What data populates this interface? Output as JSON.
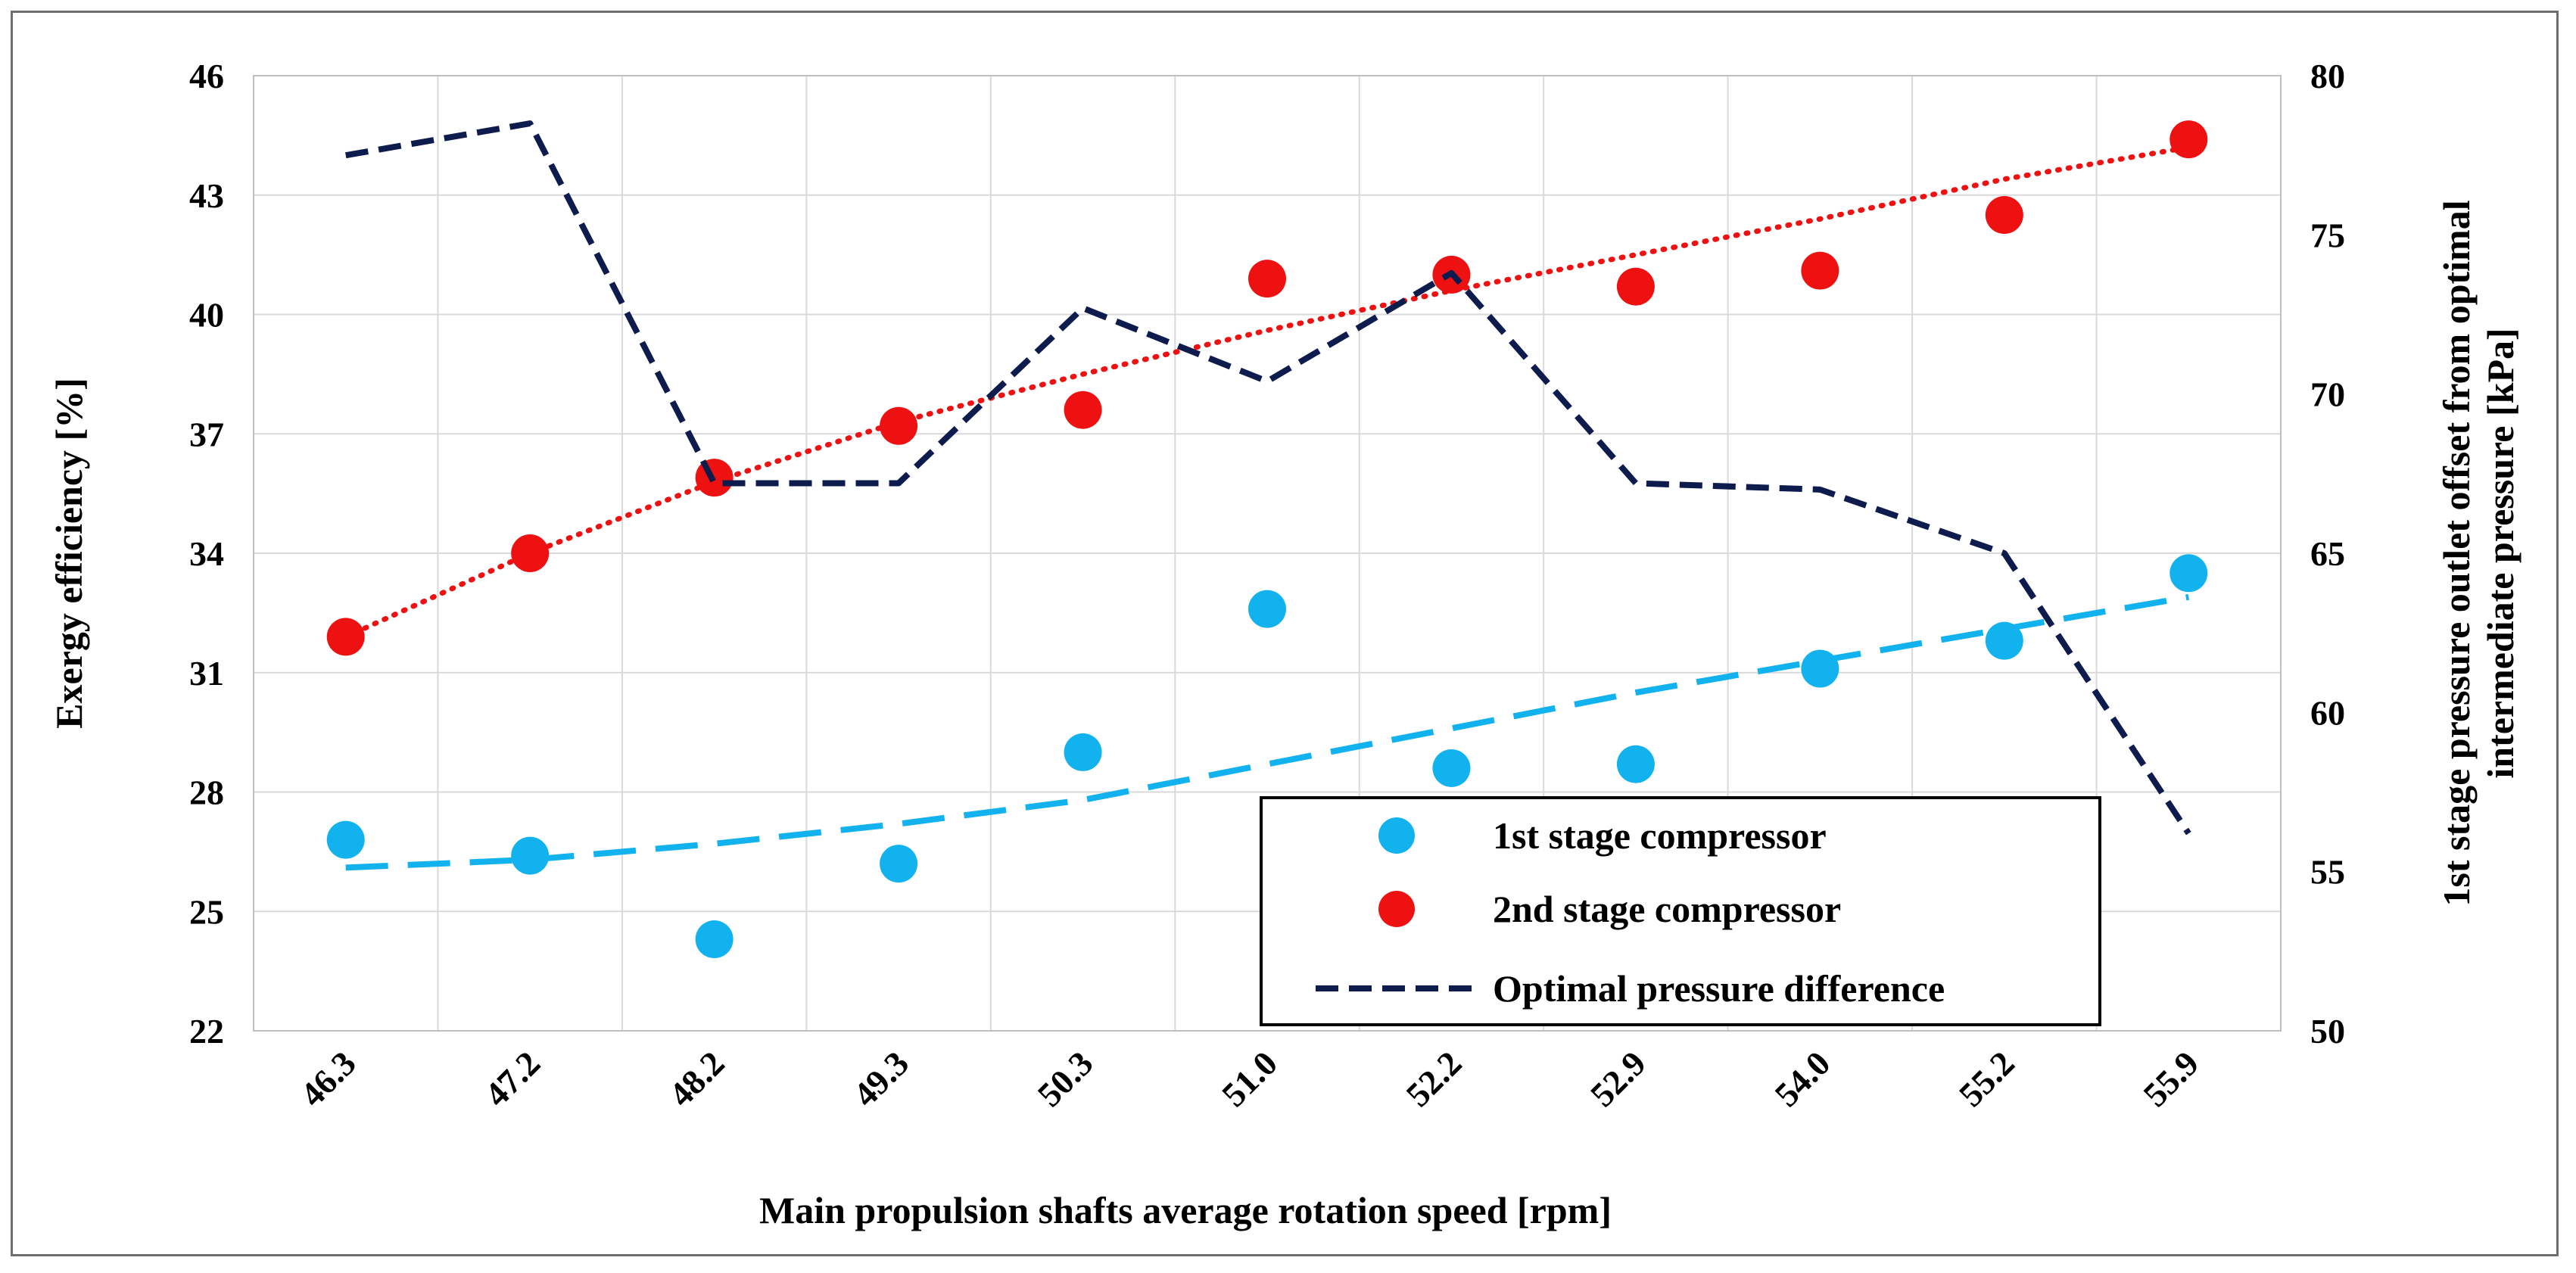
{
  "chart_data": {
    "type": "scatter",
    "categories": [
      "46.3",
      "47.2",
      "48.2",
      "49.3",
      "50.3",
      "51.0",
      "52.2",
      "52.9",
      "54.0",
      "55.2",
      "55.9"
    ],
    "xlabel": "Main propulsion shafts average rotation speed [rpm]",
    "ylabel": "Exergy efficiency [%]",
    "y2label_line1": "1st stage pressure outlet offset from optimal",
    "y2label_line2": "intermediate pressure [kPa]",
    "ylim": [
      22,
      46
    ],
    "yticks": [
      "22",
      "25",
      "28",
      "31",
      "34",
      "37",
      "40",
      "43",
      "46"
    ],
    "y2lim": [
      50,
      80
    ],
    "y2ticks": [
      "50",
      "55",
      "60",
      "65",
      "70",
      "75",
      "80"
    ],
    "grid": true,
    "legend_position": "bottom-right",
    "series": [
      {
        "name": "1st stage compressor",
        "axis": "left",
        "kind": "scatter",
        "color": "#12b2ef",
        "values": [
          26.8,
          26.4,
          24.3,
          26.2,
          29.0,
          32.6,
          28.6,
          28.7,
          31.1,
          31.8,
          33.5
        ],
        "trendline": [
          26.1,
          26.3,
          26.7,
          27.2,
          27.8,
          28.7,
          29.6,
          30.5,
          31.3,
          32.1,
          32.9
        ]
      },
      {
        "name": "2nd stage compressor",
        "axis": "left",
        "kind": "scatter",
        "color": "#ee1111",
        "values": [
          31.9,
          34.0,
          35.9,
          37.2,
          37.6,
          40.9,
          41.0,
          40.7,
          41.1,
          42.5,
          44.4
        ],
        "trendline": [
          31.9,
          34.0,
          35.8,
          37.3,
          38.5,
          39.6,
          40.6,
          41.5,
          42.4,
          43.4,
          44.2
        ]
      },
      {
        "name": "Optimal pressure difference",
        "axis": "right",
        "kind": "line",
        "color": "#0d1b4d",
        "values": [
          77.5,
          78.5,
          67.2,
          67.2,
          72.7,
          70.4,
          73.8,
          67.2,
          67.0,
          65.0,
          56.2
        ]
      }
    ]
  }
}
